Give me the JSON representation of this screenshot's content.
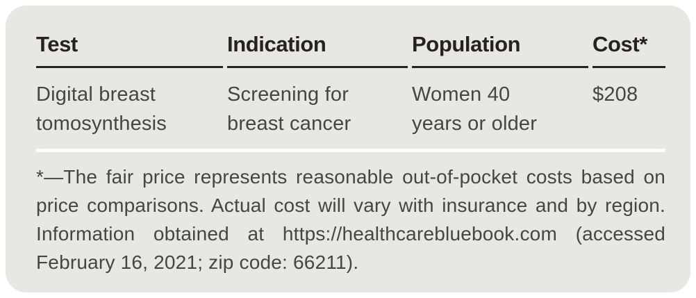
{
  "colors": {
    "page_background": "#ffffff",
    "card_background": "#e9e7e1",
    "header_text": "#262223",
    "header_rule": "#262223",
    "body_text": "#454547",
    "row_divider": "#ffffff"
  },
  "table": {
    "headers": [
      "Test",
      "Indication",
      "Population",
      "Cost*"
    ],
    "rows": [
      {
        "test": "Digital breast\ntomosynthesis",
        "indication": "Screening for\nbreast cancer",
        "population": "Women 40\nyears or older",
        "cost": "$208"
      }
    ]
  },
  "footnote": {
    "text": "*—The fair price represents reasonable out-of-pocket costs based on price comparisons. Actual cost will vary with insurance and by region. Information obtained at https://healthcarebluebook.com (accessed February 16, 2021; zip code: 66211)."
  },
  "chart_data": {
    "type": "table",
    "columns": [
      "Test",
      "Indication",
      "Population",
      "Cost*"
    ],
    "rows": [
      [
        "Digital breast tomosynthesis",
        "Screening for breast cancer",
        "Women 40 years or older",
        "$208"
      ]
    ],
    "footnote": "*—The fair price represents reasonable out-of-pocket costs based on price comparisons. Actual cost will vary with insurance and by region. Information obtained at https://healthcarebluebook.com (accessed February 16, 2021; zip code: 66211)."
  }
}
